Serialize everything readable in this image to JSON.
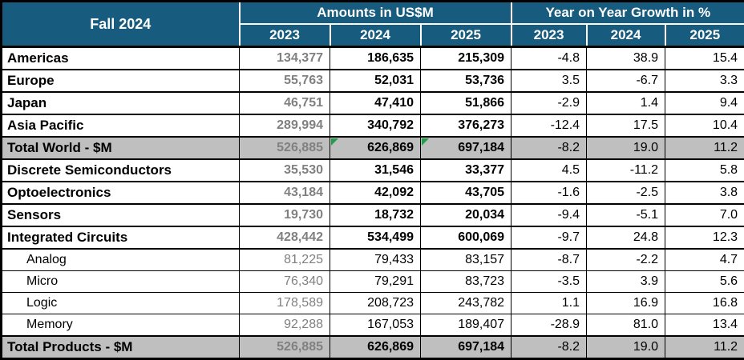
{
  "title": "Fall 2024",
  "colors": {
    "header_bg": "#175B7E",
    "header_text": "#FFFFFF",
    "total_row_bg": "#BFBFBF",
    "muted_2023_text": "#808080",
    "body_text": "#000000",
    "grid_black": "#000000",
    "header_grid_white": "#FFFFFF",
    "marker_green": "#1FA048"
  },
  "chart_data": {
    "type": "table",
    "title": "Fall 2024",
    "column_groups": [
      {
        "label": "Amounts in US$M",
        "columns": [
          "2023",
          "2024",
          "2025"
        ]
      },
      {
        "label": "Year on Year Growth in %",
        "columns": [
          "2023",
          "2024",
          "2025"
        ]
      }
    ],
    "rows": [
      {
        "label": "Americas",
        "level": "main",
        "amounts_usdm": [
          134377,
          186635,
          215309
        ],
        "yoy_growth_pct": [
          -4.8,
          38.9,
          15.4
        ]
      },
      {
        "label": "Europe",
        "level": "main",
        "amounts_usdm": [
          55763,
          52031,
          53736
        ],
        "yoy_growth_pct": [
          3.5,
          -6.7,
          3.3
        ]
      },
      {
        "label": "Japan",
        "level": "main",
        "amounts_usdm": [
          46751,
          47410,
          51866
        ],
        "yoy_growth_pct": [
          -2.9,
          1.4,
          9.4
        ]
      },
      {
        "label": "Asia Pacific",
        "level": "main",
        "amounts_usdm": [
          289994,
          340792,
          376273
        ],
        "yoy_growth_pct": [
          -12.4,
          17.5,
          10.4
        ]
      },
      {
        "label": "Total World - $M",
        "level": "total",
        "amounts_usdm": [
          526885,
          626869,
          697184
        ],
        "yoy_growth_pct": [
          -8.2,
          19.0,
          11.2
        ],
        "cell_markers": [
          false,
          true,
          true
        ]
      },
      {
        "label": "Discrete Semiconductors",
        "level": "main",
        "amounts_usdm": [
          35530,
          31546,
          33377
        ],
        "yoy_growth_pct": [
          4.5,
          -11.2,
          5.8
        ]
      },
      {
        "label": "Optoelectronics",
        "level": "main",
        "amounts_usdm": [
          43184,
          42092,
          43705
        ],
        "yoy_growth_pct": [
          -1.6,
          -2.5,
          3.8
        ]
      },
      {
        "label": "Sensors",
        "level": "main",
        "amounts_usdm": [
          19730,
          18732,
          20034
        ],
        "yoy_growth_pct": [
          -9.4,
          -5.1,
          7.0
        ]
      },
      {
        "label": "Integrated Circuits",
        "level": "main",
        "amounts_usdm": [
          428442,
          534499,
          600069
        ],
        "yoy_growth_pct": [
          -9.7,
          24.8,
          12.3
        ]
      },
      {
        "label": "Analog",
        "level": "sub",
        "amounts_usdm": [
          81225,
          79433,
          83157
        ],
        "yoy_growth_pct": [
          -8.7,
          -2.2,
          4.7
        ]
      },
      {
        "label": "Micro",
        "level": "sub",
        "amounts_usdm": [
          76340,
          79291,
          83723
        ],
        "yoy_growth_pct": [
          -3.5,
          3.9,
          5.6
        ]
      },
      {
        "label": "Logic",
        "level": "sub",
        "amounts_usdm": [
          178589,
          208723,
          243782
        ],
        "yoy_growth_pct": [
          1.1,
          16.9,
          16.8
        ]
      },
      {
        "label": "Memory",
        "level": "sub",
        "amounts_usdm": [
          92288,
          167053,
          189407
        ],
        "yoy_growth_pct": [
          -28.9,
          81.0,
          13.4
        ]
      },
      {
        "label": "Total Products - $M",
        "level": "total",
        "amounts_usdm": [
          526885,
          626869,
          697184
        ],
        "yoy_growth_pct": [
          -8.2,
          19.0,
          11.2
        ]
      }
    ]
  }
}
